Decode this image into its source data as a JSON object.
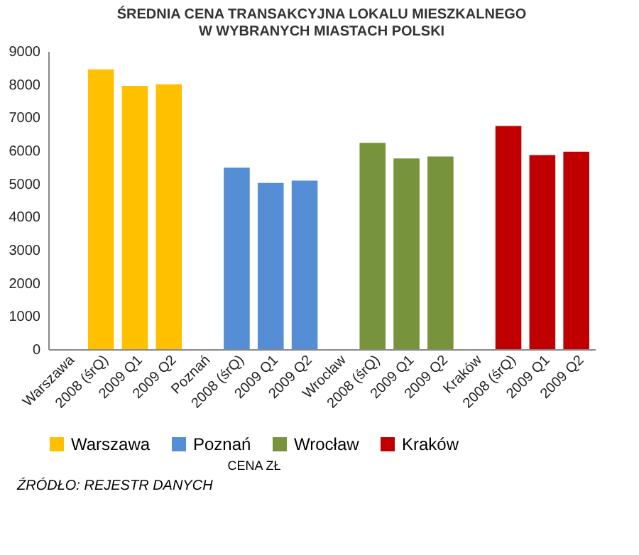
{
  "chart_data": {
    "type": "bar",
    "title": [
      "ŚREDNIA CENA TRANSAKCYJNA LOKALU MIESZKALNEGO",
      "W WYBRANYCH MIASTACH POLSKI"
    ],
    "categories": [
      "Warszawa",
      "2008 (śrQ)",
      "2009 Q1",
      "2009 Q2",
      "Poznań",
      "2008 (śrQ)",
      "2009 Q1",
      "2009 Q2",
      "Wrocław",
      "2008 (śrQ)",
      "2009 Q1",
      "2009 Q2",
      "Kraków",
      "2008 (śrQ)",
      "2009 Q1",
      "2009 Q2"
    ],
    "series": [
      {
        "name": "Warszawa",
        "color": "#ffc000",
        "values": [
          null,
          8450,
          7950,
          8000,
          null,
          null,
          null,
          null,
          null,
          null,
          null,
          null,
          null,
          null,
          null,
          null
        ]
      },
      {
        "name": "Poznań",
        "color": "#558ed5",
        "values": [
          null,
          null,
          null,
          null,
          null,
          5480,
          5020,
          5090,
          null,
          null,
          null,
          null,
          null,
          null,
          null,
          null
        ]
      },
      {
        "name": "Wrocław",
        "color": "#77933c",
        "values": [
          null,
          null,
          null,
          null,
          null,
          null,
          null,
          null,
          null,
          6230,
          5760,
          5820,
          null,
          null,
          null,
          null
        ]
      },
      {
        "name": "Kraków",
        "color": "#c00000",
        "values": [
          null,
          null,
          null,
          null,
          null,
          null,
          null,
          null,
          null,
          null,
          null,
          null,
          null,
          6740,
          5860,
          5960
        ]
      }
    ],
    "ylim": [
      0,
      9000
    ],
    "yticks": [
      0,
      1000,
      2000,
      3000,
      4000,
      5000,
      6000,
      7000,
      8000,
      9000
    ],
    "legend": "bottom",
    "legend_title": "CENA ZŁ",
    "grid": false,
    "annotations": [
      "ŹRÓDŁO: REJESTR DANYCH"
    ]
  }
}
